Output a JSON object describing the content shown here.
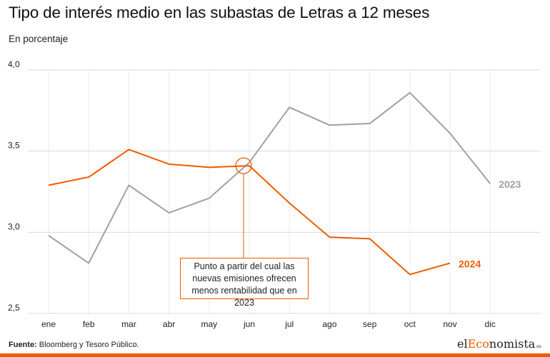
{
  "header": {
    "title": "Tipo de interés medio en las subastas de Letras a 12 meses",
    "subtitle": "En porcentaje"
  },
  "footer": {
    "source_label": "Fuente:",
    "source_text": "Bloomberg  y Tesoro Público.",
    "logo_prefix": "el",
    "logo_accent": "Eco",
    "logo_suffix": "nomista",
    "logo_tld": ".es"
  },
  "chart_data": {
    "type": "line",
    "title": "Tipo de interés medio en las subastas de Letras a 12 meses",
    "subtitle": "En porcentaje",
    "xlabel": "",
    "ylabel": "",
    "categories": [
      "ene",
      "feb",
      "mar",
      "abr",
      "may",
      "jun",
      "jul",
      "ago",
      "sep",
      "oct",
      "nov",
      "dic"
    ],
    "yticks": [
      "2,5",
      "3,0",
      "3,5",
      "4,0"
    ],
    "ylim": [
      2.5,
      4.0
    ],
    "grid": true,
    "series": [
      {
        "name": "2023",
        "color": "#a0a0a0",
        "values": [
          2.98,
          2.81,
          3.29,
          3.12,
          3.21,
          3.43,
          3.77,
          3.66,
          3.67,
          3.86,
          3.61,
          3.3
        ]
      },
      {
        "name": "2024",
        "color": "#f05a00",
        "values": [
          3.29,
          3.34,
          3.51,
          3.42,
          3.4,
          3.41,
          3.18,
          2.97,
          2.96,
          2.74,
          2.81,
          null
        ]
      }
    ],
    "annotation": {
      "text": "Punto a partir del cual las nuevas emisiones ofrecen menos rentabilidad que en 2023",
      "at_category": "jun"
    },
    "brand_color": "#f05a00"
  }
}
